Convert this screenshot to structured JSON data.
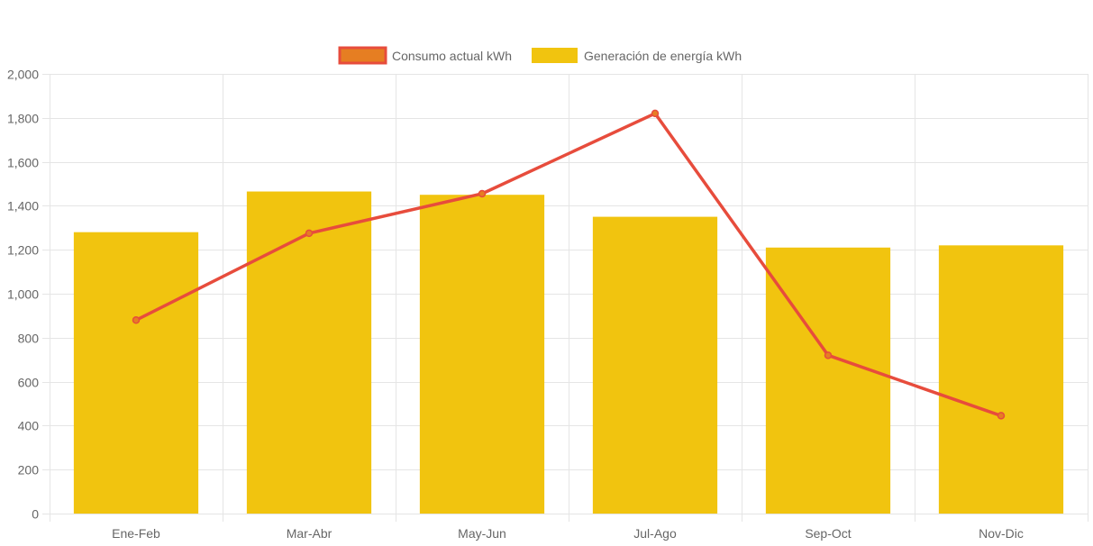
{
  "chart_data": {
    "type": "bar",
    "categories": [
      "Ene-Feb",
      "Mar-Abr",
      "May-Jun",
      "Jul-Ago",
      "Sep-Oct",
      "Nov-Dic"
    ],
    "series": [
      {
        "name": "Consumo actual kWh",
        "type": "line",
        "color": "#e74c3c",
        "fill_color": "#e67e22",
        "values": [
          880,
          1275,
          1455,
          1820,
          720,
          445
        ]
      },
      {
        "name": "Generación de energía kWh",
        "type": "bar",
        "color": "#f1c40f",
        "values": [
          1280,
          1465,
          1450,
          1350,
          1210,
          1220
        ]
      }
    ],
    "ylim": [
      0,
      2000
    ],
    "y_ticks": [
      "0",
      "200",
      "400",
      "600",
      "800",
      "1,000",
      "1,200",
      "1,400",
      "1,600",
      "1,800",
      "2,000"
    ],
    "y_tick_values": [
      0,
      200,
      400,
      600,
      800,
      1000,
      1200,
      1400,
      1600,
      1800,
      2000
    ],
    "grid": true,
    "legend_position": "top-center",
    "grid_color": "#e5e5e5"
  }
}
